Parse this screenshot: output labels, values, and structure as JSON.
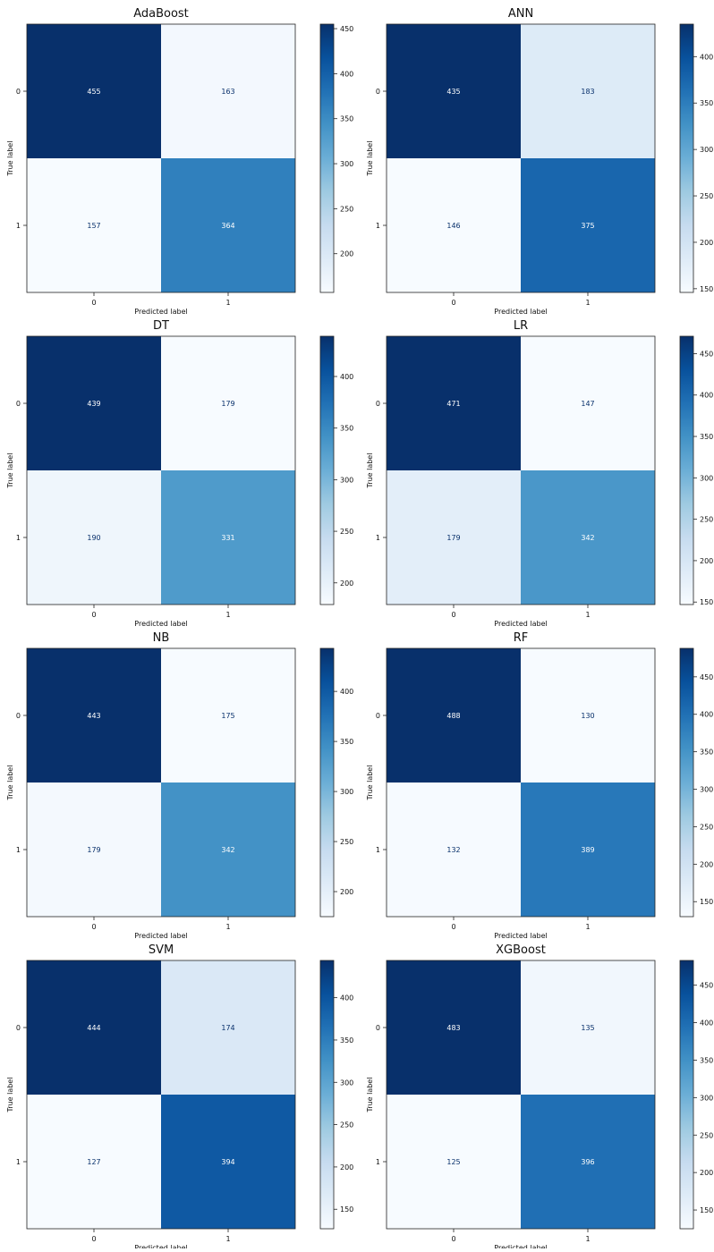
{
  "chart_data": [
    {
      "type": "heatmap",
      "title": "AdaBoost",
      "xlabel": "Predicted label",
      "ylabel": "True label",
      "x_ticks": [
        "0",
        "1"
      ],
      "y_ticks": [
        "0",
        "1"
      ],
      "matrix": [
        [
          455,
          163
        ],
        [
          157,
          364
        ]
      ],
      "colorbar": {
        "min": 157,
        "max": 455,
        "ticks": [
          200,
          250,
          300,
          350,
          400,
          450
        ],
        "colormap": "Blues"
      }
    },
    {
      "type": "heatmap",
      "title": "ANN",
      "xlabel": "Predicted label",
      "ylabel": "True label",
      "x_ticks": [
        "0",
        "1"
      ],
      "y_ticks": [
        "0",
        "1"
      ],
      "matrix": [
        [
          435,
          183
        ],
        [
          146,
          375
        ]
      ],
      "colorbar": {
        "min": 146,
        "max": 435,
        "ticks": [
          150,
          200,
          250,
          300,
          350,
          400
        ],
        "colormap": "Blues"
      }
    },
    {
      "type": "heatmap",
      "title": "DT",
      "xlabel": "Predicted label",
      "ylabel": "True label",
      "x_ticks": [
        "0",
        "1"
      ],
      "y_ticks": [
        "0",
        "1"
      ],
      "matrix": [
        [
          439,
          179
        ],
        [
          190,
          331
        ]
      ],
      "colorbar": {
        "min": 179,
        "max": 439,
        "ticks": [
          200,
          250,
          300,
          350,
          400
        ],
        "colormap": "Blues"
      }
    },
    {
      "type": "heatmap",
      "title": "LR",
      "xlabel": "Predicted label",
      "ylabel": "True label",
      "x_ticks": [
        "0",
        "1"
      ],
      "y_ticks": [
        "0",
        "1"
      ],
      "matrix": [
        [
          471,
          147
        ],
        [
          179,
          342
        ]
      ],
      "colorbar": {
        "min": 147,
        "max": 471,
        "ticks": [
          150,
          200,
          250,
          300,
          350,
          400,
          450
        ],
        "colormap": "Blues"
      }
    },
    {
      "type": "heatmap",
      "title": "NB",
      "xlabel": "Predicted label",
      "ylabel": "True label",
      "x_ticks": [
        "0",
        "1"
      ],
      "y_ticks": [
        "0",
        "1"
      ],
      "matrix": [
        [
          443,
          175
        ],
        [
          179,
          342
        ]
      ],
      "colorbar": {
        "min": 175,
        "max": 443,
        "ticks": [
          200,
          250,
          300,
          350,
          400
        ],
        "colormap": "Blues"
      }
    },
    {
      "type": "heatmap",
      "title": "RF",
      "xlabel": "Predicted label",
      "ylabel": "True label",
      "x_ticks": [
        "0",
        "1"
      ],
      "y_ticks": [
        "0",
        "1"
      ],
      "matrix": [
        [
          488,
          130
        ],
        [
          132,
          389
        ]
      ],
      "colorbar": {
        "min": 130,
        "max": 488,
        "ticks": [
          150,
          200,
          250,
          300,
          350,
          400,
          450
        ],
        "colormap": "Blues"
      }
    },
    {
      "type": "heatmap",
      "title": "SVM",
      "xlabel": "Predicted label",
      "ylabel": "True label",
      "x_ticks": [
        "0",
        "1"
      ],
      "y_ticks": [
        "0",
        "1"
      ],
      "matrix": [
        [
          444,
          174
        ],
        [
          127,
          394
        ]
      ],
      "colorbar": {
        "min": 127,
        "max": 444,
        "ticks": [
          150,
          200,
          250,
          300,
          350,
          400
        ],
        "colormap": "Blues"
      }
    },
    {
      "type": "heatmap",
      "title": "XGBoost",
      "xlabel": "Predicted label",
      "ylabel": "True label",
      "x_ticks": [
        "0",
        "1"
      ],
      "y_ticks": [
        "0",
        "1"
      ],
      "matrix": [
        [
          483,
          135
        ],
        [
          125,
          396
        ]
      ],
      "colorbar": {
        "min": 125,
        "max": 483,
        "ticks": [
          150,
          200,
          250,
          300,
          350,
          400,
          450
        ],
        "colormap": "Blues"
      }
    }
  ]
}
